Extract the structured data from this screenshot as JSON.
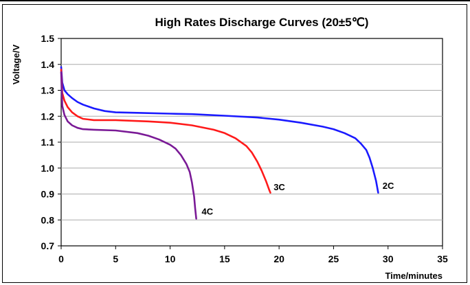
{
  "chart_data": {
    "type": "line",
    "title": "High Rates Discharge Curves (20±5℃)",
    "xlabel": "Time/minutes",
    "ylabel": "Voltage/V",
    "xlim": [
      0,
      35
    ],
    "ylim": [
      0.7,
      1.5
    ],
    "x_ticks": [
      0,
      5,
      10,
      15,
      20,
      25,
      30,
      35
    ],
    "y_ticks": [
      "0.7",
      "0.8",
      "0.9",
      "1.0",
      "1.1",
      "1.2",
      "1.3",
      "1.4",
      "1.5"
    ],
    "grid": "horizontal",
    "colors": {
      "2C": "#1a1aff",
      "3C": "#ff1a1a",
      "4C": "#7a1a96"
    },
    "series": [
      {
        "name": "2C",
        "x": [
          0,
          0.1,
          0.3,
          0.6,
          1,
          1.5,
          2,
          3,
          4,
          5,
          7,
          10,
          12,
          15,
          18,
          20,
          22,
          24,
          25,
          26,
          27,
          27.5,
          28,
          28.3,
          28.6,
          28.9,
          29.1
        ],
        "y": [
          1.39,
          1.33,
          1.3,
          1.285,
          1.27,
          1.255,
          1.245,
          1.23,
          1.22,
          1.215,
          1.213,
          1.21,
          1.208,
          1.202,
          1.195,
          1.187,
          1.175,
          1.16,
          1.15,
          1.135,
          1.115,
          1.095,
          1.07,
          1.04,
          1.0,
          0.95,
          0.905
        ]
      },
      {
        "name": "3C",
        "x": [
          0,
          0.1,
          0.3,
          0.6,
          1,
          1.5,
          2,
          3,
          5,
          8,
          10,
          12,
          14,
          15,
          16,
          17,
          17.5,
          18,
          18.4,
          18.8,
          19.1,
          19.2
        ],
        "y": [
          1.38,
          1.29,
          1.26,
          1.235,
          1.215,
          1.2,
          1.19,
          1.185,
          1.185,
          1.18,
          1.175,
          1.165,
          1.148,
          1.135,
          1.115,
          1.085,
          1.06,
          1.025,
          0.99,
          0.95,
          0.915,
          0.905
        ]
      },
      {
        "name": "4C",
        "x": [
          0,
          0.1,
          0.3,
          0.6,
          1,
          1.5,
          2,
          3,
          5,
          7,
          8,
          9,
          10,
          10.5,
          11,
          11.5,
          11.8,
          12.0,
          12.2,
          12.3,
          12.4
        ],
        "y": [
          1.37,
          1.24,
          1.205,
          1.18,
          1.165,
          1.155,
          1.15,
          1.148,
          1.145,
          1.135,
          1.125,
          1.11,
          1.09,
          1.075,
          1.05,
          1.015,
          0.985,
          0.945,
          0.89,
          0.845,
          0.805
        ]
      }
    ],
    "annotations": [
      {
        "text": "2C",
        "x": 29.5,
        "y": 0.92
      },
      {
        "text": "3C",
        "x": 19.5,
        "y": 0.915
      },
      {
        "text": "4C",
        "x": 12.9,
        "y": 0.82
      }
    ]
  }
}
